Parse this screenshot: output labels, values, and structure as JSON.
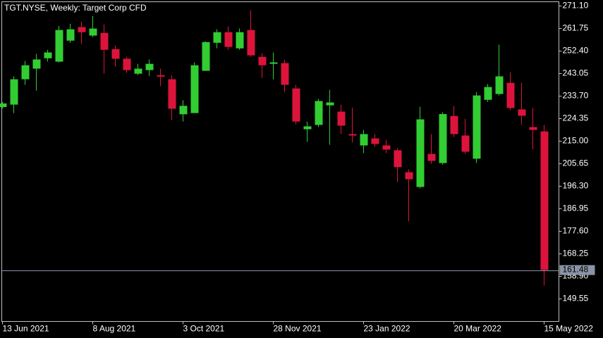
{
  "chart_data": {
    "type": "candlestick",
    "title": "TGT.NYSE, Weekly:  Target Corp CFD",
    "categories": [
      "13 Jun 2021",
      null,
      null,
      null,
      null,
      null,
      null,
      null,
      "8 Aug 2021",
      null,
      null,
      null,
      null,
      null,
      null,
      null,
      "3 Oct 2021",
      null,
      null,
      null,
      null,
      null,
      null,
      null,
      "28 Nov 2021",
      null,
      null,
      null,
      null,
      null,
      null,
      null,
      "23 Jan 2022",
      null,
      null,
      null,
      null,
      null,
      null,
      null,
      "20 Mar 2022",
      null,
      null,
      null,
      null,
      null,
      null,
      null,
      "15 May 2022"
    ],
    "open": [
      229.0,
      230.0,
      240.5,
      244.9,
      249.2,
      247.8,
      256.5,
      262.1,
      258.6,
      259.7,
      253.0,
      249.0,
      242.8,
      244.3,
      242.2,
      240.5,
      226.0,
      226.5,
      244.0,
      255.6,
      260.0,
      253.3,
      260.9,
      249.8,
      246.9,
      247.2,
      236.7,
      219.8,
      221.6,
      229.7,
      227.1,
      217.8,
      213.1,
      216.0,
      213.1,
      211.1,
      202.0,
      195.9,
      209.6,
      205.8,
      225.3,
      217.2,
      207.6,
      232.0,
      234.4,
      239.0,
      228.0,
      220.7,
      218.9
    ],
    "high": [
      231.0,
      241.7,
      248.1,
      251.0,
      252.7,
      262.6,
      263.5,
      264.4,
      266.7,
      263.2,
      254.5,
      249.8,
      246.9,
      248.7,
      244.9,
      242.2,
      231.8,
      247.5,
      256.2,
      261.2,
      262.4,
      261.5,
      269.1,
      251.3,
      251.6,
      248.7,
      238.2,
      223.0,
      232.4,
      236.1,
      230.0,
      228.8,
      219.5,
      217.8,
      215.4,
      212.0,
      203.2,
      229.1,
      217.8,
      226.8,
      229.4,
      224.1,
      235.2,
      238.5,
      254.8,
      243.4,
      239.0,
      228.6,
      221.6
    ],
    "low": [
      228.5,
      226.5,
      238.2,
      235.8,
      247.8,
      247.5,
      255.6,
      255.1,
      258.0,
      242.8,
      245.7,
      243.1,
      242.2,
      241.9,
      237.6,
      223.6,
      223.0,
      226.5,
      244.0,
      253.3,
      252.7,
      252.7,
      249.8,
      241.1,
      240.5,
      235.2,
      221.8,
      214.6,
      220.7,
      213.4,
      217.8,
      214.3,
      209.9,
      212.5,
      209.9,
      198.0,
      181.6,
      195.3,
      205.5,
      205.2,
      216.6,
      209.6,
      205.8,
      231.1,
      233.8,
      227.7,
      221.8,
      211.4,
      155.1
    ],
    "close": [
      230.5,
      240.5,
      246.3,
      248.7,
      251.6,
      260.9,
      261.2,
      260.0,
      261.5,
      252.7,
      249.0,
      244.3,
      244.9,
      246.9,
      241.6,
      228.3,
      229.5,
      246.3,
      255.9,
      260.0,
      253.9,
      260.0,
      250.4,
      246.3,
      247.5,
      238.2,
      223.0,
      221.0,
      231.5,
      230.9,
      221.3,
      217.2,
      217.8,
      213.7,
      211.4,
      204.1,
      199.1,
      223.9,
      206.7,
      226.1,
      217.8,
      210.5,
      233.8,
      237.3,
      241.7,
      228.6,
      225.4,
      219.5,
      161.48
    ],
    "up_color": "#32cd32",
    "down_color": "#dc143c",
    "last_price": 161.48,
    "ylim": [
      140.2,
      272.6
    ],
    "yticks": [
      {
        "value": 271.1,
        "label": "271.10"
      },
      {
        "value": 261.75,
        "label": "261.75"
      },
      {
        "value": 252.4,
        "label": "252.40"
      },
      {
        "value": 243.05,
        "label": "243.05"
      },
      {
        "value": 233.7,
        "label": "233.70"
      },
      {
        "value": 224.35,
        "label": "224.35"
      },
      {
        "value": 215.0,
        "label": "215.00"
      },
      {
        "value": 205.65,
        "label": "205.65"
      },
      {
        "value": 196.3,
        "label": "196.30"
      },
      {
        "value": 186.95,
        "label": "186.95"
      },
      {
        "value": 177.6,
        "label": "177.60"
      },
      {
        "value": 168.25,
        "label": "168.25"
      },
      {
        "value": 158.9,
        "label": "158.90"
      },
      {
        "value": 149.55,
        "label": "149.55"
      }
    ]
  }
}
